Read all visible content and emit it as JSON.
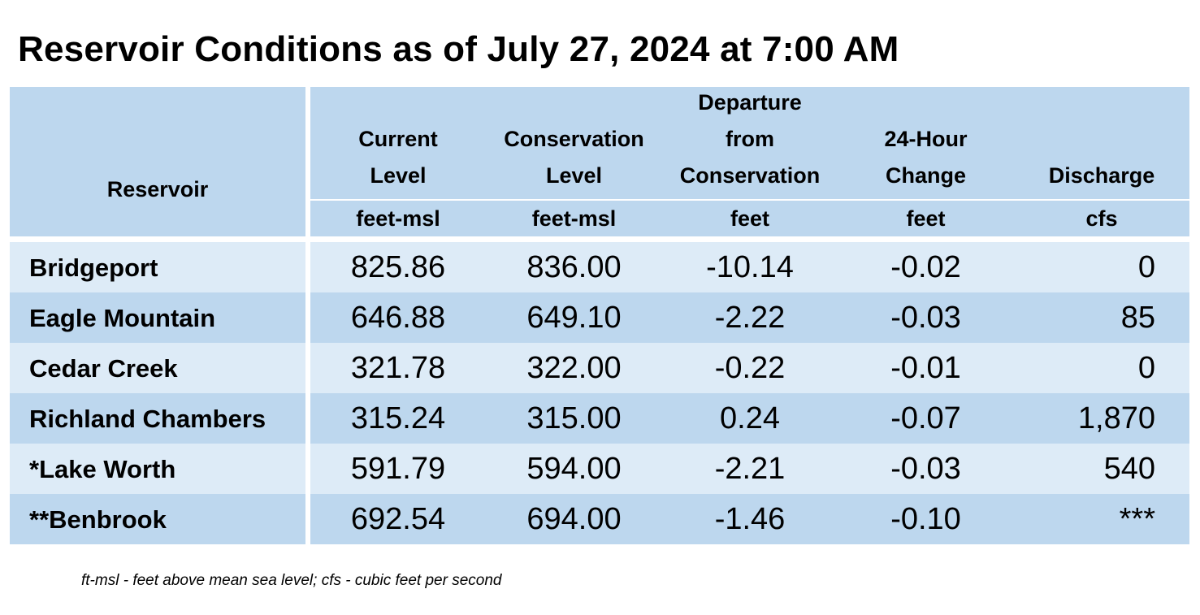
{
  "title": "Reservoir Conditions as of July 27, 2024 at 7:00 AM",
  "columns": [
    {
      "label": "Reservoir",
      "unit": ""
    },
    {
      "label": "Current Level",
      "unit": "feet-msl"
    },
    {
      "label": "Conservation Level",
      "unit": "feet-msl"
    },
    {
      "label": "Departure from Conservation",
      "unit": "feet"
    },
    {
      "label": "24-Hour Change",
      "unit": "feet"
    },
    {
      "label": "Discharge",
      "unit": "cfs"
    }
  ],
  "header_lines": {
    "current": [
      "Current",
      "Level"
    ],
    "conservation": [
      "Conservation",
      "Level"
    ],
    "departure": [
      "Departure",
      "from",
      "Conservation"
    ],
    "change": [
      "24-Hour",
      "Change"
    ],
    "discharge": [
      "Discharge"
    ]
  },
  "rows": [
    {
      "reservoir": "Bridgeport",
      "current": "825.86",
      "conservation": "836.00",
      "departure": "-10.14",
      "change": "-0.02",
      "discharge": "0"
    },
    {
      "reservoir": "Eagle Mountain",
      "current": "646.88",
      "conservation": "649.10",
      "departure": "-2.22",
      "change": "-0.03",
      "discharge": "85"
    },
    {
      "reservoir": "Cedar Creek",
      "current": "321.78",
      "conservation": "322.00",
      "departure": "-0.22",
      "change": "-0.01",
      "discharge": "0"
    },
    {
      "reservoir": "Richland Chambers",
      "current": "315.24",
      "conservation": "315.00",
      "departure": "0.24",
      "change": "-0.07",
      "discharge": "1,870"
    },
    {
      "reservoir": "*Lake Worth",
      "current": "591.79",
      "conservation": "594.00",
      "departure": "-2.21",
      "change": "-0.03",
      "discharge": "540"
    },
    {
      "reservoir": "**Benbrook",
      "current": "692.54",
      "conservation": "694.00",
      "departure": "-1.46",
      "change": "-0.10",
      "discharge": "***"
    }
  ],
  "footnote": "ft-msl - feet above mean sea level; cfs - cubic feet per second",
  "colors": {
    "header": "#bdd7ee",
    "row_light": "#ddebf7",
    "row_dark": "#bdd7ee"
  }
}
